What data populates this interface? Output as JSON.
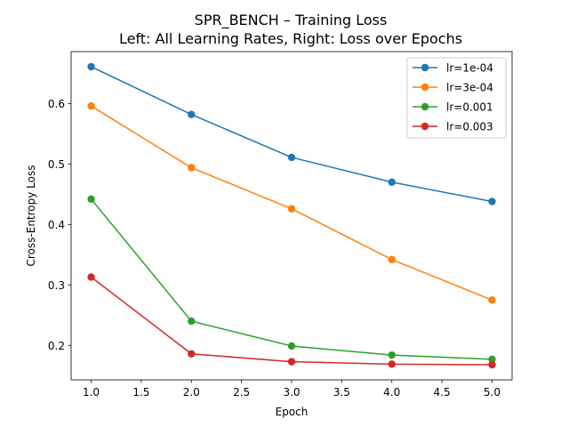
{
  "chart_data": {
    "type": "line",
    "title_line1": "SPR_BENCH – Training Loss",
    "title_line2": "Left: All Learning Rates, Right: Loss over Epochs",
    "xlabel": "Epoch",
    "ylabel": "Cross-Entropy Loss",
    "x": [
      1,
      2,
      3,
      4,
      5
    ],
    "xlim": [
      0.8,
      5.2
    ],
    "ylim": [
      0.143,
      0.686
    ],
    "xticks": [
      "1.0",
      "1.5",
      "2.0",
      "2.5",
      "3.0",
      "3.5",
      "4.0",
      "4.5",
      "5.0"
    ],
    "yticks": [
      "0.2",
      "0.3",
      "0.4",
      "0.5",
      "0.6"
    ],
    "grid": false,
    "legend_position": "top-right",
    "series": [
      {
        "name": "lr=1e-04",
        "color": "#1f77b4",
        "values": [
          0.661,
          0.582,
          0.511,
          0.47,
          0.438
        ]
      },
      {
        "name": "lr=3e-04",
        "color": "#ff7f0e",
        "values": [
          0.596,
          0.494,
          0.426,
          0.342,
          0.275
        ]
      },
      {
        "name": "lr=0.001",
        "color": "#2ca02c",
        "values": [
          0.442,
          0.24,
          0.199,
          0.184,
          0.177
        ]
      },
      {
        "name": "lr=0.003",
        "color": "#d62728",
        "values": [
          0.313,
          0.186,
          0.173,
          0.169,
          0.168
        ]
      }
    ]
  }
}
